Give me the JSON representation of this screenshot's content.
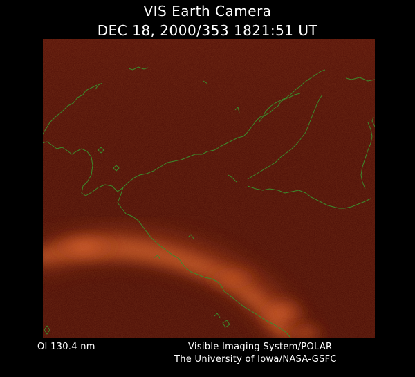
{
  "header": {
    "title_line1": "VIS Earth Camera",
    "title_line2": "DEC 18, 2000/353 1821:51 UT"
  },
  "footer": {
    "filter_label": "OI  130.4 nm",
    "credit_line1": "Visible Imaging System/POLAR",
    "credit_line2": "The University of Iowa/NASA-GSFC"
  },
  "colors": {
    "background": "#000000",
    "image_base": "#4a0c05",
    "aurora_bright": "#e0662a",
    "coastline": "#3c8a2c",
    "text": "#ffffff"
  }
}
